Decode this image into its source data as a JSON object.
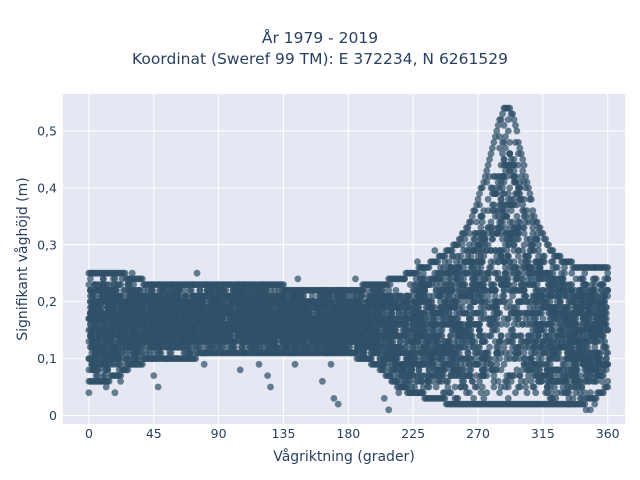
{
  "chart_data": {
    "type": "scatter",
    "title": "År 1979 - 2019",
    "subtitle": "Koordinat (Sweref 99 TM): E 372234, N 6261529",
    "xlabel": "Vågriktning (grader)",
    "ylabel": "Signifikant våghöjd (m)",
    "xlim": [
      -18,
      372
    ],
    "ylim": [
      -0.015,
      0.565
    ],
    "x_ticks": [
      0,
      45,
      90,
      135,
      180,
      225,
      270,
      315,
      360
    ],
    "x_tick_labels": [
      "0",
      "45",
      "90",
      "135",
      "180",
      "225",
      "270",
      "315",
      "360"
    ],
    "y_ticks": [
      0,
      0.1,
      0.2,
      0.3,
      0.4,
      0.5
    ],
    "y_tick_labels": [
      "0",
      "0,1",
      "0,2",
      "0,3",
      "0,4",
      "0,5"
    ],
    "grid": true,
    "marker_color": "#2f5168",
    "plot_background": "#e5e8f2",
    "density_band": {
      "x": [
        0,
        10,
        20,
        30,
        45,
        60,
        90,
        120,
        150,
        180,
        200,
        215,
        225,
        240,
        255,
        265,
        275,
        283,
        288,
        292,
        295,
        300,
        305,
        310,
        320,
        330,
        340,
        350,
        355,
        360
      ],
      "y_min": [
        0.06,
        0.06,
        0.07,
        0.09,
        0.1,
        0.1,
        0.11,
        0.11,
        0.11,
        0.11,
        0.09,
        0.05,
        0.04,
        0.03,
        0.02,
        0.02,
        0.02,
        0.02,
        0.02,
        0.02,
        0.02,
        0.02,
        0.02,
        0.02,
        0.02,
        0.02,
        0.02,
        0.03,
        0.04,
        0.05
      ],
      "y_max": [
        0.25,
        0.25,
        0.25,
        0.24,
        0.23,
        0.23,
        0.23,
        0.23,
        0.22,
        0.22,
        0.23,
        0.24,
        0.25,
        0.27,
        0.3,
        0.34,
        0.42,
        0.5,
        0.54,
        0.54,
        0.52,
        0.46,
        0.4,
        0.34,
        0.29,
        0.27,
        0.26,
        0.26,
        0.26,
        0.26
      ]
    },
    "outlier_points": [
      [
        0,
        0.04
      ],
      [
        2,
        0.25
      ],
      [
        5,
        0.22
      ],
      [
        12,
        0.05
      ],
      [
        18,
        0.04
      ],
      [
        22,
        0.06
      ],
      [
        30,
        0.25
      ],
      [
        45,
        0.07
      ],
      [
        48,
        0.05
      ],
      [
        60,
        0.1
      ],
      [
        75,
        0.25
      ],
      [
        80,
        0.09
      ],
      [
        105,
        0.08
      ],
      [
        118,
        0.09
      ],
      [
        124,
        0.07
      ],
      [
        126,
        0.05
      ],
      [
        130,
        0.12
      ],
      [
        143,
        0.09
      ],
      [
        145,
        0.24
      ],
      [
        150,
        0.2
      ],
      [
        162,
        0.06
      ],
      [
        165,
        0.11
      ],
      [
        168,
        0.09
      ],
      [
        170,
        0.03
      ],
      [
        173,
        0.02
      ],
      [
        185,
        0.24
      ],
      [
        195,
        0.1
      ],
      [
        205,
        0.03
      ],
      [
        208,
        0.01
      ],
      [
        215,
        0.04
      ],
      [
        228,
        0.27
      ],
      [
        232,
        0.23
      ],
      [
        240,
        0.29
      ],
      [
        252,
        0.28
      ],
      [
        310,
        0.31
      ],
      [
        322,
        0.26
      ],
      [
        330,
        0.25
      ],
      [
        338,
        0.24
      ],
      [
        345,
        0.01
      ],
      [
        348,
        0.01
      ],
      [
        351,
        0.02
      ],
      [
        355,
        0.2
      ]
    ]
  }
}
